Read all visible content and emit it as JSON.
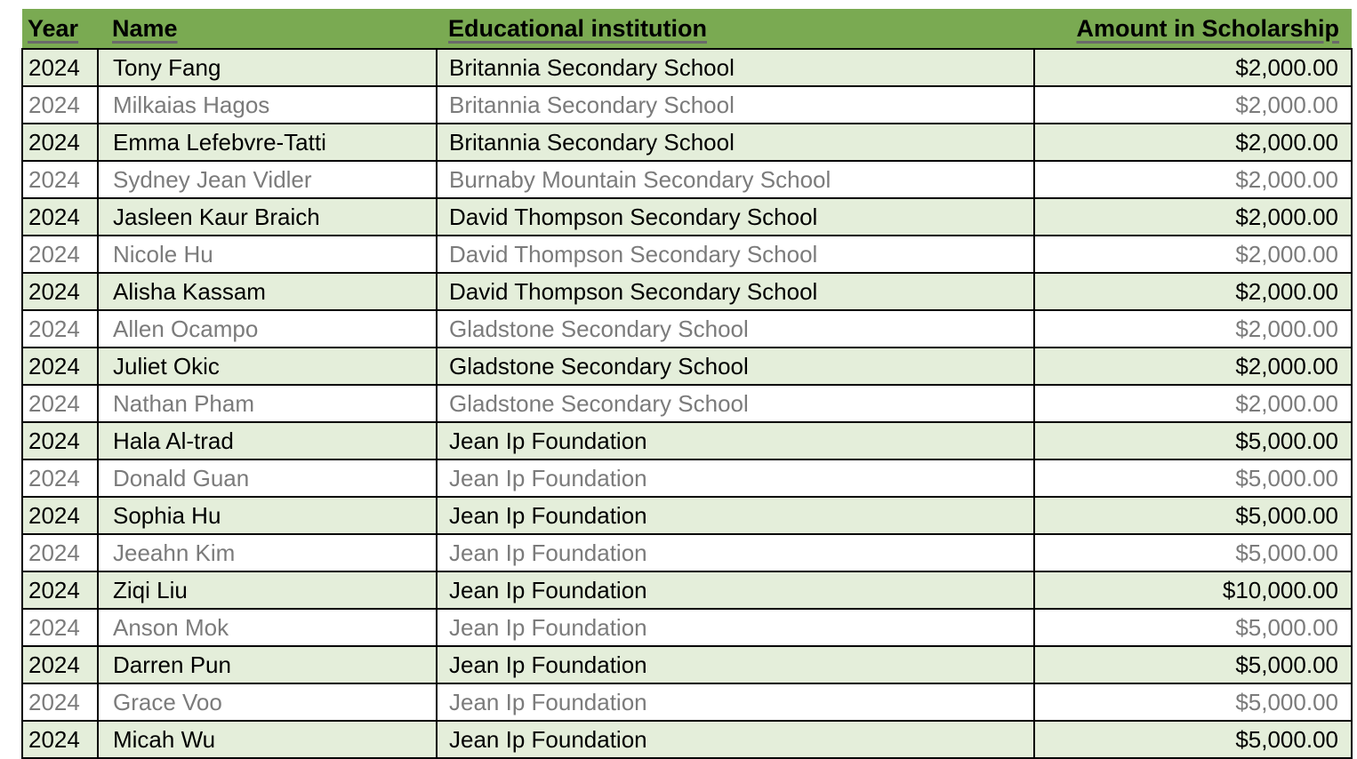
{
  "table": {
    "columns": [
      {
        "key": "year",
        "label": "Year",
        "align": "left"
      },
      {
        "key": "name",
        "label": "Name",
        "align": "left"
      },
      {
        "key": "institution",
        "label": "Educational institution",
        "align": "left"
      },
      {
        "key": "amount",
        "label": "Amount in Scholarship",
        "align": "right"
      }
    ],
    "rows": [
      {
        "year": "2024",
        "name": "Tony Fang",
        "institution": "Britannia Secondary School",
        "amount": "$2,000.00"
      },
      {
        "year": "2024",
        "name": "Milkaias Hagos",
        "institution": "Britannia Secondary School",
        "amount": "$2,000.00"
      },
      {
        "year": "2024",
        "name": "Emma Lefebvre-Tatti",
        "institution": "Britannia Secondary School",
        "amount": "$2,000.00"
      },
      {
        "year": "2024",
        "name": "Sydney Jean Vidler",
        "institution": "Burnaby Mountain Secondary School",
        "amount": "$2,000.00"
      },
      {
        "year": "2024",
        "name": "Jasleen Kaur Braich",
        "institution": "David Thompson Secondary School",
        "amount": "$2,000.00"
      },
      {
        "year": "2024",
        "name": "Nicole Hu",
        "institution": "David Thompson Secondary School",
        "amount": "$2,000.00"
      },
      {
        "year": "2024",
        "name": "Alisha Kassam",
        "institution": "David Thompson Secondary School",
        "amount": "$2,000.00"
      },
      {
        "year": "2024",
        "name": "Allen Ocampo",
        "institution": "Gladstone Secondary School",
        "amount": "$2,000.00"
      },
      {
        "year": "2024",
        "name": "Juliet Okic",
        "institution": "Gladstone Secondary School",
        "amount": "$2,000.00"
      },
      {
        "year": "2024",
        "name": "Nathan Pham",
        "institution": "Gladstone Secondary School",
        "amount": "$2,000.00"
      },
      {
        "year": "2024",
        "name": "Hala Al-trad",
        "institution": "Jean Ip Foundation",
        "amount": "$5,000.00"
      },
      {
        "year": "2024",
        "name": "Donald Guan",
        "institution": "Jean Ip Foundation",
        "amount": "$5,000.00"
      },
      {
        "year": "2024",
        "name": "Sophia Hu",
        "institution": "Jean Ip Foundation",
        "amount": "$5,000.00"
      },
      {
        "year": "2024",
        "name": "Jeeahn Kim",
        "institution": "Jean Ip Foundation",
        "amount": "$5,000.00"
      },
      {
        "year": "2024",
        "name": "Ziqi Liu",
        "institution": "Jean Ip Foundation",
        "amount": "$10,000.00"
      },
      {
        "year": "2024",
        "name": "Anson Mok",
        "institution": "Jean Ip Foundation",
        "amount": "$5,000.00"
      },
      {
        "year": "2024",
        "name": "Darren Pun",
        "institution": "Jean Ip Foundation",
        "amount": "$5,000.00"
      },
      {
        "year": "2024",
        "name": "Grace Voo",
        "institution": "Jean Ip Foundation",
        "amount": "$5,000.00"
      },
      {
        "year": "2024",
        "name": "Micah Wu",
        "institution": "Jean Ip Foundation",
        "amount": "$5,000.00"
      }
    ]
  },
  "colors": {
    "header_bg": "#7aaa52",
    "row_alt_bg": "#e4eeda",
    "row_white_bg": "#ffffff",
    "row_black_text": "#000000",
    "row_gray_text": "#7b7b7b",
    "header_underline": "#6a6a6a",
    "border": "#000000"
  }
}
